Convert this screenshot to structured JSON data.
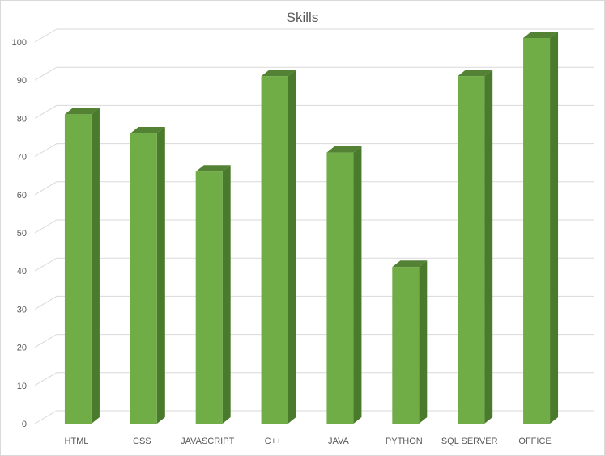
{
  "chart_data": {
    "type": "bar",
    "title": "Skills",
    "categories": [
      "HTML",
      "CSS",
      "JAVASCRIPT",
      "C++",
      "JAVA",
      "PYTHON",
      "SQL SERVER",
      "OFFICE"
    ],
    "values": [
      80,
      75,
      65,
      90,
      70,
      40,
      90,
      100
    ],
    "ylim": [
      0,
      100
    ],
    "yticks": [
      0,
      10,
      20,
      30,
      40,
      50,
      60,
      70,
      80,
      90,
      100
    ],
    "grid": true,
    "legend": "none",
    "style": "3d-column",
    "colors": {
      "front": "#70AD47",
      "side": "#4A7A2B",
      "top": "#548235",
      "grid": "#d9d9d9"
    }
  }
}
